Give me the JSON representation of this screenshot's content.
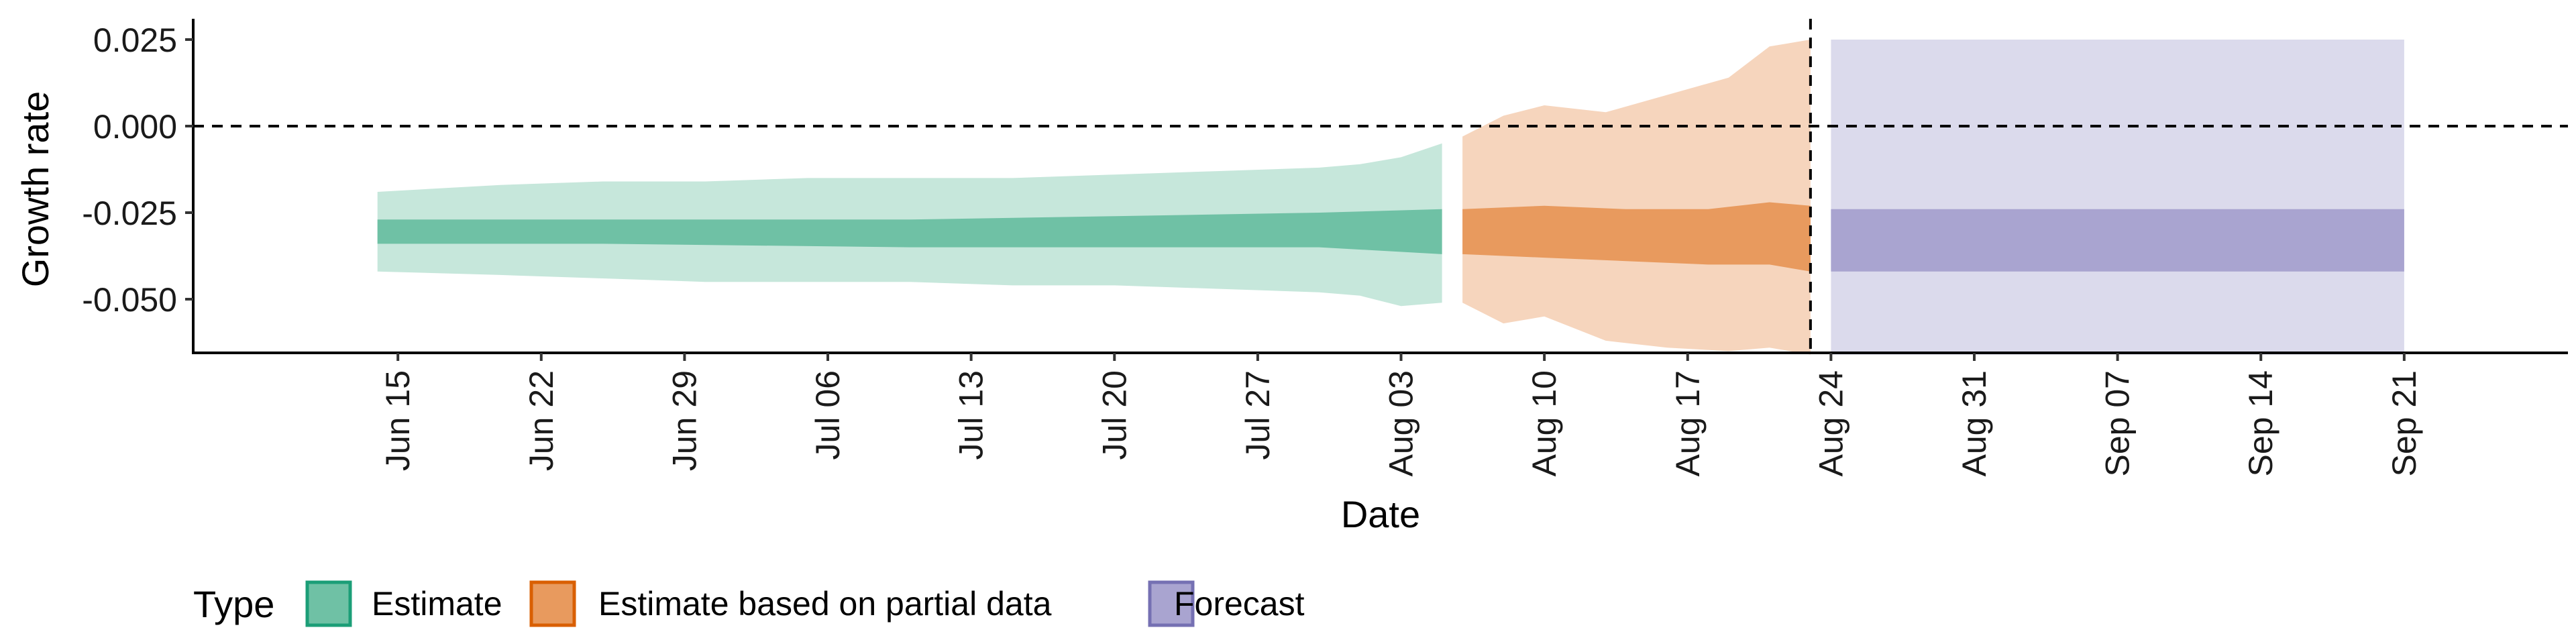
{
  "chart_data": {
    "type": "area",
    "xlabel": "Date",
    "ylabel": "Growth rate",
    "x_axis": {
      "type": "date",
      "range": [
        "2021-06-05",
        "2021-09-29"
      ],
      "tick_dates": [
        "2021-06-15",
        "2021-06-22",
        "2021-06-29",
        "2021-07-06",
        "2021-07-13",
        "2021-07-20",
        "2021-07-27",
        "2021-08-03",
        "2021-08-10",
        "2021-08-17",
        "2021-08-24",
        "2021-08-31",
        "2021-09-07",
        "2021-09-14",
        "2021-09-21"
      ],
      "tick_labels": [
        "Jun 15",
        "Jun 22",
        "Jun 29",
        "Jul 06",
        "Jul 13",
        "Jul 20",
        "Jul 27",
        "Aug 03",
        "Aug 10",
        "Aug 17",
        "Aug 24",
        "Aug 31",
        "Sep 07",
        "Sep 14",
        "Sep 21"
      ]
    },
    "y_axis": {
      "range": [
        -0.0655,
        0.031
      ],
      "ticks": [
        0.025,
        0.0,
        -0.025,
        -0.05
      ],
      "tick_labels": [
        "0.025",
        "0.000",
        "-0.025",
        "-0.050"
      ]
    },
    "reference_lines": {
      "horizontal_y": 0.0,
      "vertical_date": "2021-08-23",
      "style": "dashed"
    },
    "grid": false,
    "legend": {
      "position": "bottom-left",
      "title": "Type",
      "entries": [
        {
          "label": "Estimate",
          "fill": "#6fc1a5",
          "stroke": "#1b9e77"
        },
        {
          "label": "Estimate based on partial data",
          "fill": "#e89a5e",
          "stroke": "#d95f02"
        },
        {
          "label": "Forecast",
          "fill": "#a9a4d0",
          "stroke": "#7570b3"
        }
      ]
    },
    "series": [
      {
        "name": "Estimate",
        "color": "#1b9e77",
        "outer_fill": "#c6e7db",
        "inner_fill": "#6fc1a5",
        "outer": [
          {
            "date": "2021-06-14",
            "lower": -0.042,
            "upper": -0.019
          },
          {
            "date": "2021-06-20",
            "lower": -0.043,
            "upper": -0.017
          },
          {
            "date": "2021-06-25",
            "lower": -0.044,
            "upper": -0.016
          },
          {
            "date": "2021-06-30",
            "lower": -0.045,
            "upper": -0.016
          },
          {
            "date": "2021-07-05",
            "lower": -0.045,
            "upper": -0.015
          },
          {
            "date": "2021-07-10",
            "lower": -0.045,
            "upper": -0.015
          },
          {
            "date": "2021-07-15",
            "lower": -0.046,
            "upper": -0.015
          },
          {
            "date": "2021-07-20",
            "lower": -0.046,
            "upper": -0.014
          },
          {
            "date": "2021-07-25",
            "lower": -0.047,
            "upper": -0.013
          },
          {
            "date": "2021-07-30",
            "lower": -0.048,
            "upper": -0.012
          },
          {
            "date": "2021-08-01",
            "lower": -0.049,
            "upper": -0.011
          },
          {
            "date": "2021-08-03",
            "lower": -0.052,
            "upper": -0.009
          },
          {
            "date": "2021-08-05",
            "lower": -0.051,
            "upper": -0.005
          }
        ],
        "inner": [
          {
            "date": "2021-06-14",
            "lower": -0.034,
            "upper": -0.027
          },
          {
            "date": "2021-06-25",
            "lower": -0.034,
            "upper": -0.027
          },
          {
            "date": "2021-07-10",
            "lower": -0.035,
            "upper": -0.027
          },
          {
            "date": "2021-07-20",
            "lower": -0.035,
            "upper": -0.026
          },
          {
            "date": "2021-07-30",
            "lower": -0.035,
            "upper": -0.025
          },
          {
            "date": "2021-08-05",
            "lower": -0.037,
            "upper": -0.024
          }
        ]
      },
      {
        "name": "Estimate based on partial data",
        "color": "#d95f02",
        "outer_fill": "#f6d5bd",
        "inner_fill": "#e89a5e",
        "outer": [
          {
            "date": "2021-08-06",
            "lower": -0.051,
            "upper": -0.003
          },
          {
            "date": "2021-08-08",
            "lower": -0.057,
            "upper": 0.003
          },
          {
            "date": "2021-08-10",
            "lower": -0.055,
            "upper": 0.006
          },
          {
            "date": "2021-08-13",
            "lower": -0.062,
            "upper": 0.004
          },
          {
            "date": "2021-08-16",
            "lower": -0.064,
            "upper": 0.009
          },
          {
            "date": "2021-08-19",
            "lower": -0.065,
            "upper": 0.014
          },
          {
            "date": "2021-08-21",
            "lower": -0.064,
            "upper": 0.023
          },
          {
            "date": "2021-08-23",
            "lower": -0.066,
            "upper": 0.025
          }
        ],
        "inner": [
          {
            "date": "2021-08-06",
            "lower": -0.037,
            "upper": -0.024
          },
          {
            "date": "2021-08-10",
            "lower": -0.038,
            "upper": -0.023
          },
          {
            "date": "2021-08-14",
            "lower": -0.039,
            "upper": -0.024
          },
          {
            "date": "2021-08-18",
            "lower": -0.04,
            "upper": -0.024
          },
          {
            "date": "2021-08-21",
            "lower": -0.04,
            "upper": -0.022
          },
          {
            "date": "2021-08-23",
            "lower": -0.042,
            "upper": -0.023
          }
        ]
      },
      {
        "name": "Forecast",
        "color": "#7570b3",
        "outer_fill": "#dbdaec",
        "inner_fill": "#a9a4d0",
        "outer": [
          {
            "date": "2021-08-24",
            "lower": -0.066,
            "upper": 0.025
          },
          {
            "date": "2021-09-21",
            "lower": -0.066,
            "upper": 0.025
          }
        ],
        "inner": [
          {
            "date": "2021-08-24",
            "lower": -0.042,
            "upper": -0.024
          },
          {
            "date": "2021-09-21",
            "lower": -0.042,
            "upper": -0.024
          }
        ]
      }
    ]
  }
}
